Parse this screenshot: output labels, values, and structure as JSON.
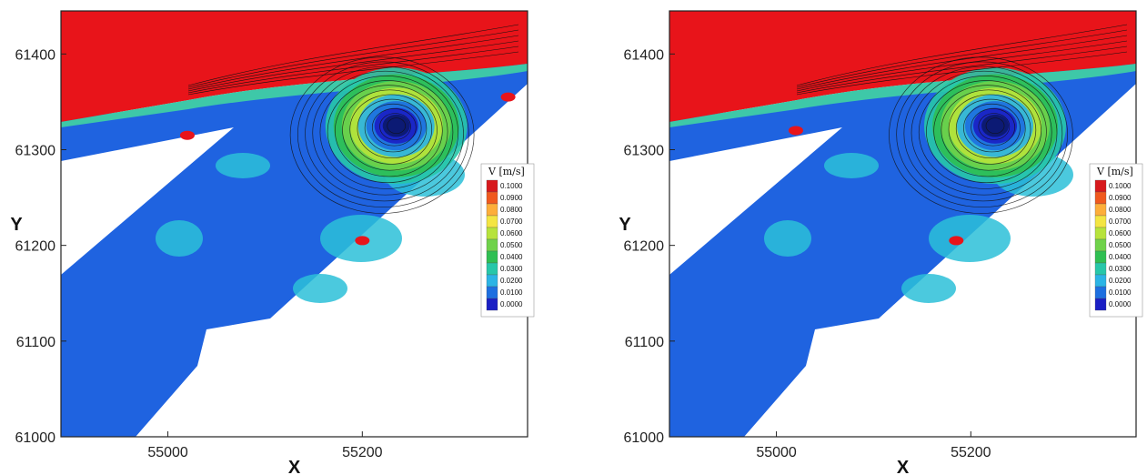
{
  "chart_data": [
    {
      "type": "heatmap",
      "title": "",
      "xlabel": "X",
      "ylabel": "Y",
      "xlim": [
        54890,
        55370
      ],
      "ylim": [
        61000,
        61445
      ],
      "x_ticks": [
        "55000",
        "55200"
      ],
      "y_ticks": [
        "61000",
        "61100",
        "61200",
        "61300",
        "61400"
      ],
      "legend": {
        "title": "V [m/s]",
        "placement": "right",
        "levels": [
          "0.1000",
          "0.0900",
          "0.0800",
          "0.0700",
          "0.0600",
          "0.0500",
          "0.0400",
          "0.0300",
          "0.0200",
          "0.0100",
          "0.0000"
        ],
        "colors": [
          "#d7191c",
          "#f0591e",
          "#fdae3a",
          "#f4e542",
          "#b7e33b",
          "#6fd24a",
          "#2fbf52",
          "#27c7a9",
          "#2bb4e5",
          "#1d6fe0",
          "#1a1fc4"
        ]
      },
      "vortex_center": [
        55235,
        61325
      ],
      "hotspots": [
        [
          55200,
          61205
        ],
        [
          55350,
          61355
        ],
        [
          55020,
          61315
        ]
      ]
    },
    {
      "type": "heatmap",
      "title": "",
      "xlabel": "X",
      "ylabel": "Y",
      "xlim": [
        54890,
        55370
      ],
      "ylim": [
        61000,
        61445
      ],
      "x_ticks": [
        "55000",
        "55200"
      ],
      "y_ticks": [
        "61000",
        "61100",
        "61200",
        "61300",
        "61400"
      ],
      "legend": {
        "title": "V [m/s]",
        "placement": "right",
        "levels": [
          "0.1000",
          "0.0900",
          "0.0800",
          "0.0700",
          "0.0600",
          "0.0500",
          "0.0400",
          "0.0300",
          "0.0200",
          "0.0100",
          "0.0000"
        ],
        "colors": [
          "#d7191c",
          "#f0591e",
          "#fdae3a",
          "#f4e542",
          "#b7e33b",
          "#6fd24a",
          "#2fbf52",
          "#27c7a9",
          "#2bb4e5",
          "#1d6fe0",
          "#1a1fc4"
        ]
      },
      "vortex_center": [
        55225,
        61325
      ],
      "hotspots": [
        [
          55185,
          61205
        ],
        [
          55020,
          61320
        ]
      ]
    }
  ]
}
